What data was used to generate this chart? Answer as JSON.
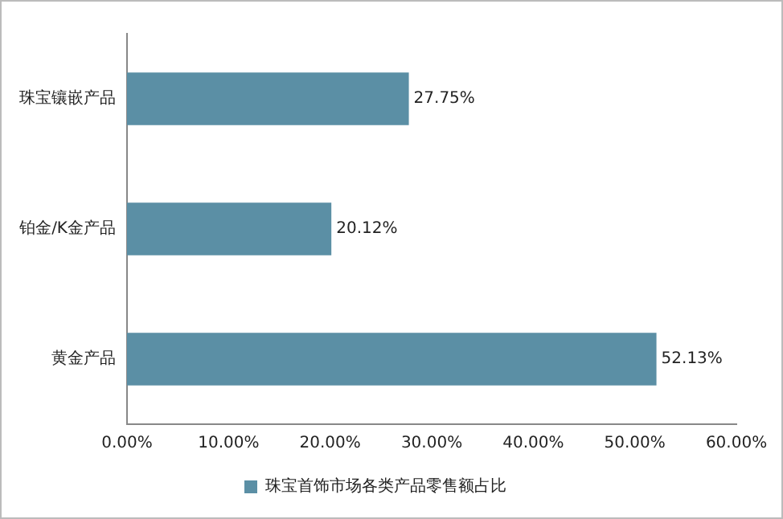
{
  "chart_data": {
    "type": "bar",
    "orientation": "horizontal",
    "categories": [
      "珠宝镶嵌产品",
      "铂金/K金产品",
      "黄金产品"
    ],
    "series": [
      {
        "name": "珠宝首饰市场各类产品零售额占比",
        "color": "#5b8fa5",
        "values": [
          27.75,
          20.12,
          52.13
        ],
        "value_labels": [
          "27.75%",
          "20.12%",
          "52.13%"
        ]
      }
    ],
    "xlim": [
      0,
      60
    ],
    "xticks": [
      {
        "value": 0,
        "label": "0.00%"
      },
      {
        "value": 10,
        "label": "10.00%"
      },
      {
        "value": 20,
        "label": "20.00%"
      },
      {
        "value": 30,
        "label": "30.00%"
      },
      {
        "value": 40,
        "label": "40.00%"
      },
      {
        "value": 50,
        "label": "50.00%"
      },
      {
        "value": 60,
        "label": "60.00%"
      }
    ],
    "grid": false,
    "legend": "bottom"
  }
}
